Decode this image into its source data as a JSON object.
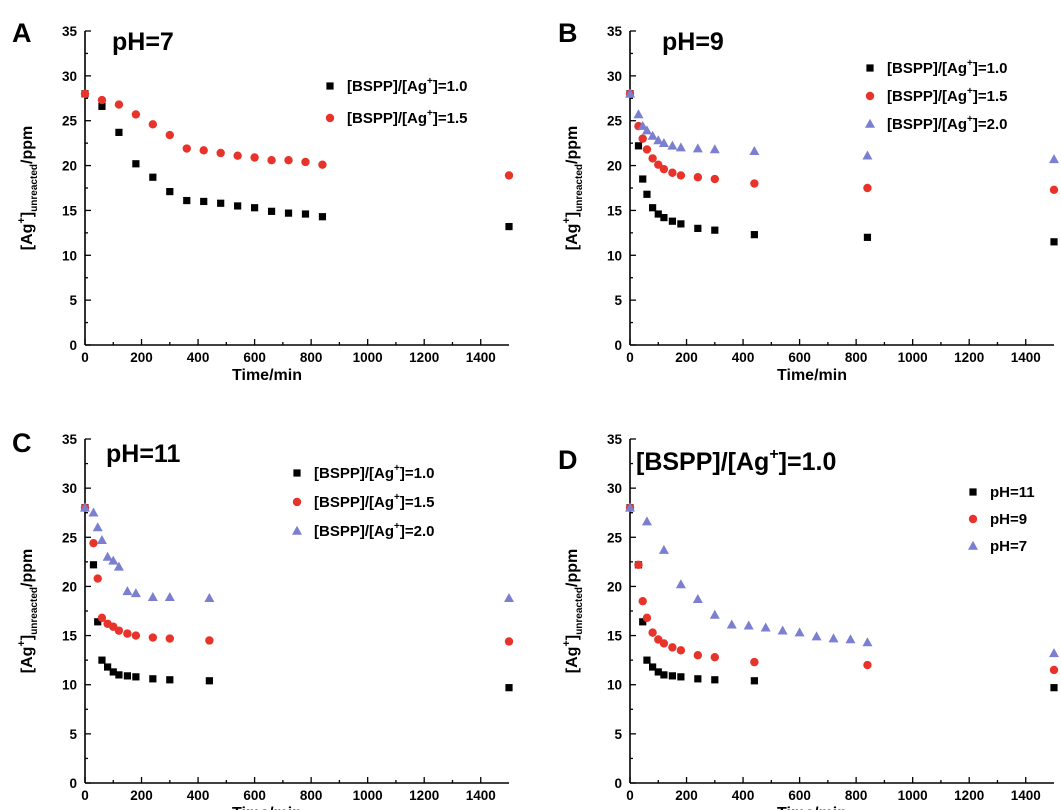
{
  "colors": {
    "sq": "#000000",
    "circ": "#e8332a",
    "tri": "#7b7fd0"
  },
  "chart_data": [
    {
      "type": "scatter",
      "panel": "A",
      "title": "pH=7",
      "xlabel": "Time/min",
      "ylabel_main": "[Ag",
      "ylabel_sup": "+",
      "ylabel_mid": "]",
      "ylabel_sub": "unreacted",
      "ylabel_end": "/ppm",
      "xlim": [
        0,
        1500
      ],
      "ylim": [
        0,
        35
      ],
      "xticks": [
        0,
        200,
        400,
        600,
        800,
        1000,
        1200,
        1400
      ],
      "yticks": [
        0,
        5,
        10,
        15,
        20,
        25,
        30,
        35
      ],
      "legend_position": "top-right",
      "series": [
        {
          "name": "[BSPP]/[Ag+]=1.0",
          "name_pre": "[BSPP]/[Ag",
          "name_sup": "+",
          "name_post": "]=1.0",
          "marker": "square",
          "color": "#000000",
          "x": [
            0,
            60,
            120,
            180,
            240,
            300,
            360,
            420,
            480,
            540,
            600,
            660,
            720,
            780,
            840,
            1500
          ],
          "y": [
            28.0,
            26.6,
            23.7,
            20.2,
            18.7,
            17.1,
            16.1,
            16.0,
            15.8,
            15.5,
            15.3,
            14.9,
            14.7,
            14.6,
            14.3,
            13.2
          ]
        },
        {
          "name": "[BSPP]/[Ag+]=1.5",
          "name_pre": "[BSPP]/[Ag",
          "name_sup": "+",
          "name_post": "]=1.5",
          "marker": "circle",
          "color": "#e8332a",
          "x": [
            0,
            60,
            120,
            180,
            240,
            300,
            360,
            420,
            480,
            540,
            600,
            660,
            720,
            780,
            840,
            1500
          ],
          "y": [
            28.0,
            27.3,
            26.8,
            25.7,
            24.6,
            23.4,
            21.9,
            21.7,
            21.4,
            21.1,
            20.9,
            20.6,
            20.6,
            20.4,
            20.1,
            18.9
          ]
        }
      ]
    },
    {
      "type": "scatter",
      "panel": "B",
      "title": "pH=9",
      "xlabel": "Time/min",
      "ylabel_main": "[Ag",
      "ylabel_sup": "+",
      "ylabel_mid": "]",
      "ylabel_sub": "unreacted",
      "ylabel_end": "/ppm",
      "xlim": [
        0,
        1500
      ],
      "ylim": [
        0,
        35
      ],
      "xticks": [
        0,
        200,
        400,
        600,
        800,
        1000,
        1200,
        1400
      ],
      "yticks": [
        0,
        5,
        10,
        15,
        20,
        25,
        30,
        35
      ],
      "legend_position": "top-right",
      "series": [
        {
          "name": "[BSPP]/[Ag+]=1.0",
          "name_pre": "[BSPP]/[Ag",
          "name_sup": "+",
          "name_post": "]=1.0",
          "marker": "square",
          "color": "#000000",
          "x": [
            0,
            30,
            45,
            60,
            80,
            100,
            120,
            150,
            180,
            240,
            300,
            440,
            840,
            1500
          ],
          "y": [
            28.0,
            22.2,
            18.5,
            16.8,
            15.3,
            14.6,
            14.2,
            13.8,
            13.5,
            13.0,
            12.8,
            12.3,
            12.0,
            11.5
          ]
        },
        {
          "name": "[BSPP]/[Ag+]=1.5",
          "name_pre": "[BSPP]/[Ag",
          "name_sup": "+",
          "name_post": "]=1.5",
          "marker": "circle",
          "color": "#e8332a",
          "x": [
            0,
            30,
            45,
            60,
            80,
            100,
            120,
            150,
            180,
            240,
            300,
            440,
            840,
            1500
          ],
          "y": [
            28.0,
            24.4,
            23.0,
            21.8,
            20.8,
            20.1,
            19.6,
            19.2,
            18.9,
            18.7,
            18.5,
            18.0,
            17.5,
            17.3
          ]
        },
        {
          "name": "[BSPP]/[Ag+]=2.0",
          "name_pre": "[BSPP]/[Ag",
          "name_sup": "+",
          "name_post": "]=2.0",
          "marker": "triangle",
          "color": "#7b7fd0",
          "x": [
            0,
            30,
            45,
            60,
            80,
            100,
            120,
            150,
            180,
            240,
            300,
            440,
            840,
            1500
          ],
          "y": [
            28.0,
            25.7,
            24.4,
            23.9,
            23.3,
            22.8,
            22.5,
            22.2,
            22.0,
            21.9,
            21.8,
            21.6,
            21.1,
            20.7
          ]
        }
      ]
    },
    {
      "type": "scatter",
      "panel": "C",
      "title": "pH=11",
      "xlabel": "Time/min",
      "ylabel_main": "[Ag",
      "ylabel_sup": "+",
      "ylabel_mid": "]",
      "ylabel_sub": "unreacted",
      "ylabel_end": "/ppm",
      "xlim": [
        0,
        1500
      ],
      "ylim": [
        0,
        35
      ],
      "xticks": [
        0,
        200,
        400,
        600,
        800,
        1000,
        1200,
        1400
      ],
      "yticks": [
        0,
        5,
        10,
        15,
        20,
        25,
        30,
        35
      ],
      "legend_position": "top-right",
      "series": [
        {
          "name": "[BSPP]/[Ag+]=1.0",
          "name_pre": "[BSPP]/[Ag",
          "name_sup": "+",
          "name_post": "]=1.0",
          "marker": "square",
          "color": "#000000",
          "x": [
            0,
            30,
            45,
            60,
            80,
            100,
            120,
            150,
            180,
            240,
            300,
            440,
            1500
          ],
          "y": [
            28.0,
            22.2,
            16.4,
            12.5,
            11.8,
            11.3,
            11.0,
            10.9,
            10.8,
            10.6,
            10.5,
            10.4,
            9.7
          ]
        },
        {
          "name": "[BSPP]/[Ag+]=1.5",
          "name_pre": "[BSPP]/[Ag",
          "name_sup": "+",
          "name_post": "]=1.5",
          "marker": "circle",
          "color": "#e8332a",
          "x": [
            0,
            30,
            45,
            60,
            80,
            100,
            120,
            150,
            180,
            240,
            300,
            440,
            1500
          ],
          "y": [
            28.0,
            24.4,
            20.8,
            16.8,
            16.2,
            15.9,
            15.5,
            15.2,
            15.0,
            14.8,
            14.7,
            14.5,
            14.4
          ]
        },
        {
          "name": "[BSPP]/[Ag+]=2.0",
          "name_pre": "[BSPP]/[Ag",
          "name_sup": "+",
          "name_post": "]=2.0",
          "marker": "triangle",
          "color": "#7b7fd0",
          "x": [
            0,
            30,
            45,
            60,
            80,
            100,
            120,
            150,
            180,
            240,
            300,
            440,
            1500
          ],
          "y": [
            28.0,
            27.5,
            26.0,
            24.7,
            23.0,
            22.6,
            22.0,
            19.5,
            19.3,
            18.9,
            18.9,
            18.8,
            18.8
          ]
        }
      ]
    },
    {
      "type": "scatter",
      "panel": "D",
      "title_pre": "[BSPP]/[Ag",
      "title_sup": "+",
      "title_post": "]=1.0",
      "xlabel": "Time/min",
      "ylabel_main": "[Ag",
      "ylabel_sup": "+",
      "ylabel_mid": "]",
      "ylabel_sub": "unreacted",
      "ylabel_end": "/ppm",
      "xlim": [
        0,
        1500
      ],
      "ylim": [
        0,
        35
      ],
      "xticks": [
        0,
        200,
        400,
        600,
        800,
        1000,
        1200,
        1400
      ],
      "yticks": [
        0,
        5,
        10,
        15,
        20,
        25,
        30,
        35
      ],
      "legend_position": "right",
      "series": [
        {
          "name": "pH=11",
          "name_pre": "pH=11",
          "name_sup": "",
          "name_post": "",
          "marker": "square",
          "color": "#000000",
          "x": [
            0,
            30,
            45,
            60,
            80,
            100,
            120,
            150,
            180,
            240,
            300,
            440,
            1500
          ],
          "y": [
            28.0,
            22.2,
            16.4,
            12.5,
            11.8,
            11.3,
            11.0,
            10.9,
            10.8,
            10.6,
            10.5,
            10.4,
            9.7
          ]
        },
        {
          "name": "pH=9",
          "name_pre": "pH=9",
          "name_sup": "",
          "name_post": "",
          "marker": "circle",
          "color": "#e8332a",
          "x": [
            0,
            30,
            45,
            60,
            80,
            100,
            120,
            150,
            180,
            240,
            300,
            440,
            840,
            1500
          ],
          "y": [
            28.0,
            22.2,
            18.5,
            16.8,
            15.3,
            14.6,
            14.2,
            13.8,
            13.5,
            13.0,
            12.8,
            12.3,
            12.0,
            11.5
          ]
        },
        {
          "name": "pH=7",
          "name_pre": "pH=7",
          "name_sup": "",
          "name_post": "",
          "marker": "triangle",
          "color": "#7b7fd0",
          "x": [
            0,
            60,
            120,
            180,
            240,
            300,
            360,
            420,
            480,
            540,
            600,
            660,
            720,
            780,
            840,
            1500
          ],
          "y": [
            28.0,
            26.6,
            23.7,
            20.2,
            18.7,
            17.1,
            16.1,
            16.0,
            15.8,
            15.5,
            15.3,
            14.9,
            14.7,
            14.6,
            14.3,
            13.2
          ]
        }
      ]
    }
  ]
}
